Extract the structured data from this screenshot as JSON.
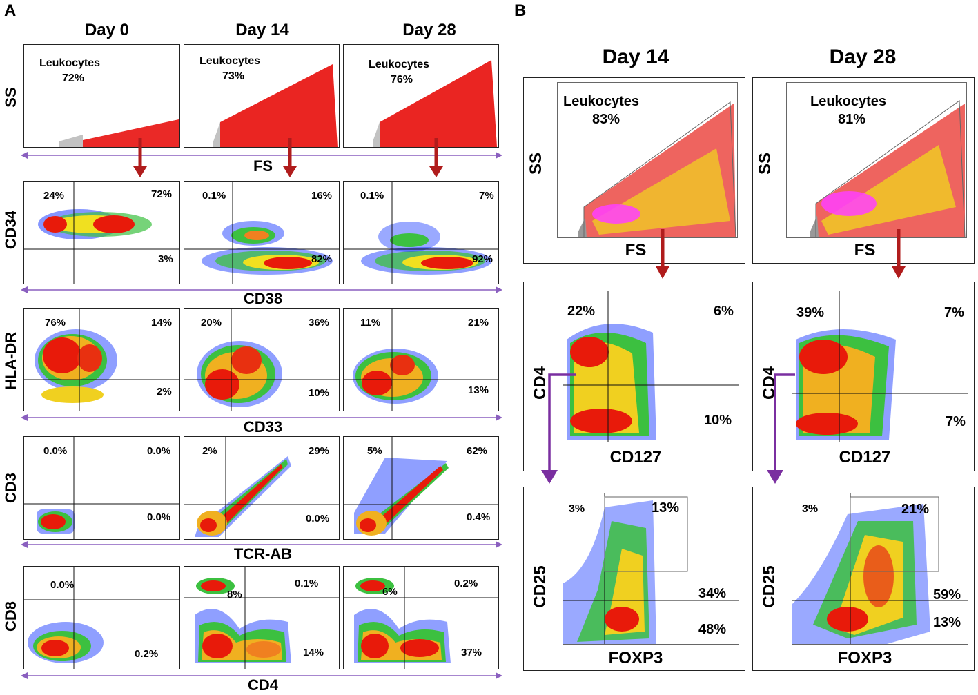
{
  "panel_a": {
    "letter": "A",
    "columns": [
      "Day 0",
      "Day 14",
      "Day 28"
    ],
    "rows": [
      {
        "y_label": "SS",
        "x_label": "FS",
        "type": "scatter",
        "cells": [
          {
            "gate": "Leukocytes",
            "pct": "72%"
          },
          {
            "gate": "Leukocytes",
            "pct": "73%"
          },
          {
            "gate": "Leukocytes",
            "pct": "76%"
          }
        ]
      },
      {
        "y_label": "CD34",
        "x_label": "CD38",
        "type": "density",
        "cells": [
          {
            "ul": "24%",
            "ur": "72%",
            "lr": "3%"
          },
          {
            "ul": "0.1%",
            "ur": "16%",
            "lr": "82%"
          },
          {
            "ul": "0.1%",
            "ur": "7%",
            "lr": "92%"
          }
        ]
      },
      {
        "y_label": "HLA-DR",
        "x_label": "CD33",
        "type": "density",
        "cells": [
          {
            "ul": "76%",
            "ur": "14%",
            "lr": "2%"
          },
          {
            "ul": "20%",
            "ur": "36%",
            "lr": "10%"
          },
          {
            "ul": "11%",
            "ur": "21%",
            "lr": "13%"
          }
        ]
      },
      {
        "y_label": "CD3",
        "x_label": "TCR-AB",
        "type": "density",
        "cells": [
          {
            "ul": "0.0%",
            "ur": "0.0%",
            "lr": "0.0%"
          },
          {
            "ul": "2%",
            "ur": "29%",
            "lr": "0.0%"
          },
          {
            "ul": "5%",
            "ur": "62%",
            "lr": "0.4%"
          }
        ]
      },
      {
        "y_label": "CD8",
        "x_label": "CD4",
        "type": "density",
        "cells": [
          {
            "ul": "0.0%",
            "ur": "",
            "lr": "0.2%"
          },
          {
            "ul": "8%",
            "ur": "0.1%",
            "lr": "14%"
          },
          {
            "ul": "6%",
            "ur": "0.2%",
            "lr": "37%"
          }
        ]
      }
    ]
  },
  "panel_b": {
    "letter": "B",
    "columns": [
      "Day 14",
      "Day 28"
    ],
    "rows": [
      {
        "y_label": "SS",
        "x_label": "FS",
        "cells": [
          {
            "gate": "Leukocytes",
            "pct": "83%"
          },
          {
            "gate": "Leukocytes",
            "pct": "81%"
          }
        ]
      },
      {
        "y_label": "CD4",
        "x_label": "CD127",
        "cells": [
          {
            "ul": "22%",
            "ur": "6%",
            "lr": "10%"
          },
          {
            "ul": "39%",
            "ur": "7%",
            "lr": "7%"
          }
        ]
      },
      {
        "y_label": "CD25",
        "x_label": "FOXP3",
        "cells": [
          {
            "ul": "3%",
            "ur": "13%",
            "mr": "34%",
            "lr": "48%"
          },
          {
            "ul": "3%",
            "ur": "21%",
            "mr": "59%",
            "lr": "13%"
          }
        ]
      }
    ]
  },
  "colors": {
    "arrow_red": "#b01c1c",
    "arrow_purple": "#7a2fa0",
    "gate_red": "#e8120f"
  }
}
